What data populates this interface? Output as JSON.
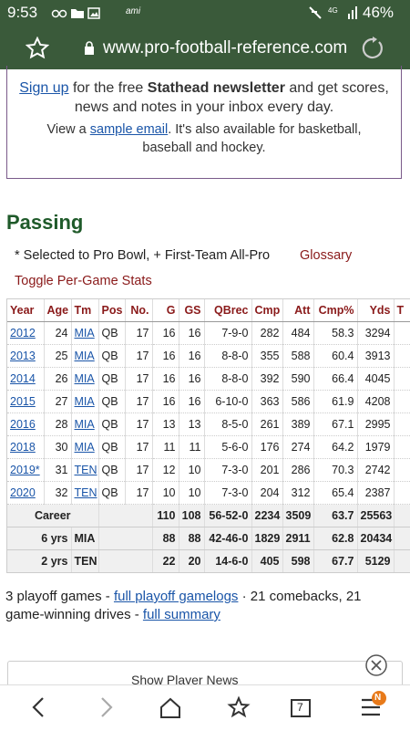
{
  "status_bar": {
    "time": "9:53",
    "carrier": "ami",
    "battery": "46%"
  },
  "browser": {
    "url": "www.pro-football-reference.com",
    "tab_count": "7",
    "notification": "N"
  },
  "newsletter": {
    "signup_link": "Sign up",
    "text1": " for the free ",
    "bold": "Stathead newsletter",
    "text2": " and get scores, news and notes in your inbox every day.",
    "text3": "View a ",
    "sample_link": "sample email",
    "text4": ". It's also available for basketball, baseball and hockey."
  },
  "section": {
    "title": "Passing",
    "note": "* Selected to Pro Bowl, + First-Team All-Pro",
    "glossary": "Glossary",
    "toggle": "Toggle Per-Game Stats"
  },
  "table": {
    "columns": [
      "Year",
      "Age",
      "Tm",
      "Pos",
      "No.",
      "G",
      "GS",
      "QBrec",
      "Cmp",
      "Att",
      "Cmp%",
      "Yds",
      "T"
    ],
    "rows": [
      [
        "2012",
        24,
        "MIA",
        "QB",
        17,
        16,
        16,
        "7-9-0",
        282,
        484,
        58.3,
        3294
      ],
      [
        "2013",
        25,
        "MIA",
        "QB",
        17,
        16,
        16,
        "8-8-0",
        355,
        588,
        60.4,
        3913
      ],
      [
        "2014",
        26,
        "MIA",
        "QB",
        17,
        16,
        16,
        "8-8-0",
        392,
        590,
        66.4,
        4045
      ],
      [
        "2015",
        27,
        "MIA",
        "QB",
        17,
        16,
        16,
        "6-10-0",
        363,
        586,
        61.9,
        4208
      ],
      [
        "2016",
        28,
        "MIA",
        "QB",
        17,
        13,
        13,
        "8-5-0",
        261,
        389,
        67.1,
        2995
      ],
      [
        "2018",
        30,
        "MIA",
        "QB",
        17,
        11,
        11,
        "5-6-0",
        176,
        274,
        64.2,
        1979
      ],
      [
        "2019*",
        31,
        "TEN",
        "QB",
        17,
        12,
        10,
        "7-3-0",
        201,
        286,
        70.3,
        2742
      ],
      [
        "2020",
        32,
        "TEN",
        "QB",
        17,
        10,
        10,
        "7-3-0",
        204,
        312,
        65.4,
        2387
      ]
    ],
    "summary": [
      {
        "label": "Career",
        "values": [
          110,
          108,
          "56-52-0",
          2234,
          3509,
          63.7,
          25563
        ]
      },
      {
        "label": "6 yrs",
        "team": "MIA",
        "values": [
          88,
          88,
          "42-46-0",
          1829,
          2911,
          62.8,
          20434
        ]
      },
      {
        "label": "2 yrs",
        "team": "TEN",
        "values": [
          22,
          20,
          "14-6-0",
          405,
          598,
          67.7,
          5129
        ]
      }
    ]
  },
  "footer": {
    "text1": "3 playoff games - ",
    "link1": "full playoff gamelogs",
    "text2": " · 21 comebacks, 21 game-winning drives - ",
    "link2": "full summary",
    "news_button": "Show Player News"
  }
}
